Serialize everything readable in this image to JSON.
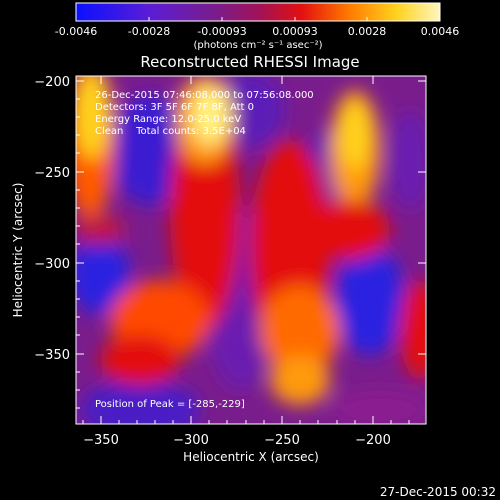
{
  "colorbar": {
    "ticks": [
      "-0.0046",
      "-0.0028",
      "-0.00093",
      "0.00093",
      "0.0028",
      "0.0046"
    ],
    "units": "(photons cm⁻² s⁻¹ asec⁻²)",
    "colors": [
      "#0a10ff",
      "#5a1dd6",
      "#7a1d8c",
      "#a0125a",
      "#e31010",
      "#ff7a00",
      "#ffd21e",
      "#fff6c0"
    ]
  },
  "title": "Reconstructed RHESSI Image",
  "info": {
    "time_range": "26-Dec-2015 07:46:08.000 to 07:56:08.000",
    "detectors": "Detectors: 3F 5F 6F 7F 8F, Att 0",
    "energy": "Energy Range: 12.0-25.0 keV",
    "algorithm": "Clean    Total counts: 3.5E+04",
    "peak": "Position of Peak = [-285,-229]"
  },
  "axes": {
    "xlabel": "Heliocentric X (arcsec)",
    "ylabel": "Heliocentric Y (arcsec)",
    "xticks": [
      "−350",
      "−300",
      "−250",
      "−200"
    ],
    "yticks": [
      "−200",
      "−250",
      "−300",
      "−350"
    ]
  },
  "timestamp": "27-Dec-2015 00:32"
}
